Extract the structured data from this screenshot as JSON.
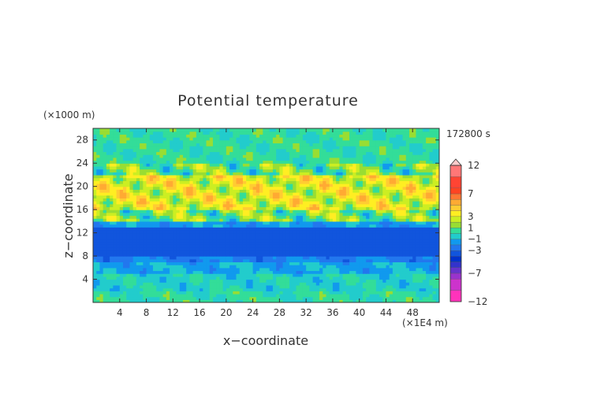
{
  "chart_data": {
    "type": "heatmap",
    "title": "Potential temperature",
    "xlabel": "x−coordinate",
    "ylabel": "z−coordinate",
    "x_unit": "(×1E4 m)",
    "y_unit": "(×1000 m)",
    "time_label": "172800 s",
    "xlim": [
      0,
      52
    ],
    "ylim": [
      0,
      30
    ],
    "x_ticks": [
      4,
      8,
      12,
      16,
      20,
      24,
      28,
      32,
      36,
      40,
      44,
      48
    ],
    "y_ticks": [
      4,
      8,
      12,
      16,
      20,
      24,
      28
    ],
    "grid": false,
    "colorbar": {
      "placement": "right",
      "labels": [
        "12",
        "7",
        "3",
        "1",
        "−1",
        "−3",
        "−7",
        "−12"
      ],
      "label_values": [
        12,
        7,
        3,
        1,
        -1,
        -3,
        -7,
        -12
      ],
      "levels": [
        -12,
        -10,
        -8,
        -7,
        -6,
        -5,
        -4,
        -3,
        -2,
        -1,
        0,
        1,
        2,
        3,
        4,
        5,
        6,
        7,
        8,
        10,
        12
      ],
      "colors": [
        "#ff33bb",
        "#cc33cc",
        "#9933cc",
        "#6633cc",
        "#3333cc",
        "#0033cc",
        "#1155dd",
        "#2277ee",
        "#1199ee",
        "#22cccc",
        "#33dd99",
        "#99dd33",
        "#ccee22",
        "#ffee22",
        "#ffcc33",
        "#ffaa33",
        "#ff7733",
        "#ff4422",
        "#ff4433",
        "#ff7777",
        "#ffaaaa"
      ]
    },
    "field_bands": [
      {
        "z": [
          0,
          2
        ],
        "value": 0.2
      },
      {
        "z": [
          2,
          5
        ],
        "value": -0.3
      },
      {
        "z": [
          5,
          7
        ],
        "value": -1.2
      },
      {
        "z": [
          7,
          8
        ],
        "value": -2.2
      },
      {
        "z": [
          8,
          13
        ],
        "value": -3.5
      },
      {
        "z": [
          13,
          14
        ],
        "value": -1.5
      },
      {
        "z": [
          14,
          16
        ],
        "value": 1.2
      },
      {
        "z": [
          16,
          22
        ],
        "value": 3.0
      },
      {
        "z": [
          22,
          24
        ],
        "value": 1.0
      },
      {
        "z": [
          24,
          30
        ],
        "value": 0.3
      }
    ]
  }
}
